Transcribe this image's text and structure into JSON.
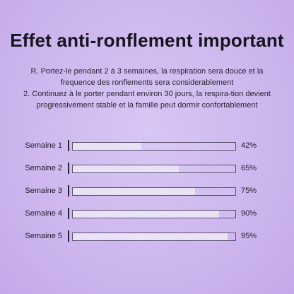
{
  "title": "Effet anti-ronflement important",
  "description": [
    "R. Portez-le pendant 2 à 3 semaines, la respiration sera douce et la frequence des ronflements sera considerablement",
    "2. Continuez à le porter pendant environ 30 jours, la respira-tion devient progressivement stable et la famille peut dormir confortablement"
  ],
  "chart_data": {
    "type": "bar",
    "orientation": "horizontal",
    "categories": [
      "Semaine 1",
      "Semaine 2",
      "Semaine 3",
      "Semaine 4",
      "Semaine 5"
    ],
    "values": [
      42,
      65,
      75,
      90,
      95
    ],
    "value_labels": [
      "42%",
      "65%",
      "75%",
      "90%",
      "95%"
    ],
    "xlim": [
      0,
      100
    ]
  }
}
